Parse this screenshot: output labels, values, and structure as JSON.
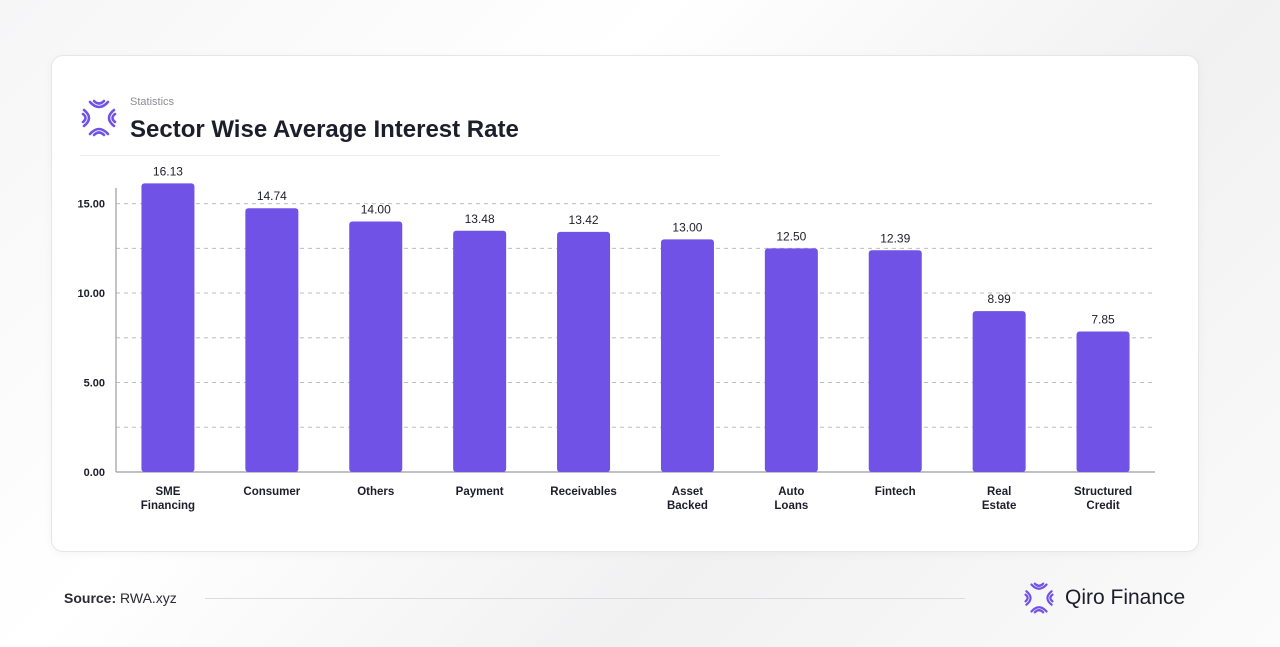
{
  "header": {
    "kicker": "Statistics",
    "title": "Sector Wise Average Interest Rate",
    "logo_icon": "qiro-logo-icon"
  },
  "footer": {
    "source_label": "Source:",
    "source_value": "RWA.xyz",
    "brand_name": "Qiro Finance",
    "brand_icon": "qiro-logo-icon"
  },
  "colors": {
    "bar": "#7152e6",
    "text": "#1d1d2b",
    "grid": "#bdbdc4",
    "axis": "#9a9aa3"
  },
  "chart_data": {
    "type": "bar",
    "categories": [
      [
        "SME",
        "Financing"
      ],
      [
        "Consumer"
      ],
      [
        "Others"
      ],
      [
        "Payment"
      ],
      [
        "Receivables"
      ],
      [
        "Asset",
        "Backed"
      ],
      [
        "Auto",
        "Loans"
      ],
      [
        "Fintech"
      ],
      [
        "Real",
        "Estate"
      ],
      [
        "Structured",
        "Credit"
      ]
    ],
    "values": [
      16.13,
      14.74,
      14.0,
      13.48,
      13.42,
      13.0,
      12.5,
      12.39,
      8.99,
      7.85
    ],
    "value_labels": [
      "16.13",
      "14.74",
      "14.00",
      "13.48",
      "13.42",
      "13.00",
      "12.50",
      "12.39",
      "8.99",
      "7.85"
    ],
    "yticks": [
      0,
      5,
      10,
      15
    ],
    "ytick_labels": [
      "0.00",
      "5.00",
      "10.00",
      "15.00"
    ],
    "ylim": [
      0,
      15.2
    ],
    "gridlines": [
      2.5,
      5,
      7.5,
      10,
      12.5,
      15
    ],
    "grid": true,
    "grid_style": "dashed",
    "legend": false
  }
}
